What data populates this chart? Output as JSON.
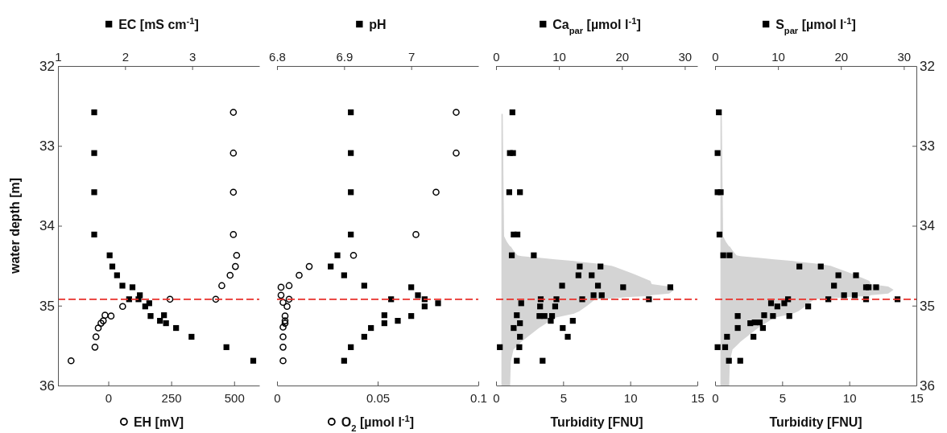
{
  "chart_data": [
    {
      "type": "scatter",
      "ylabel": "water depth [m]",
      "xlabel": "EH [mV]",
      "x2label": "EC [mS cm$^{-1}$]",
      "xlim": [
        -200,
        600
      ],
      "xticks": [
        0,
        250,
        500
      ],
      "x2lim": [
        1,
        4
      ],
      "x2ticks": [
        1,
        2,
        3
      ],
      "ylim": [
        36,
        32
      ],
      "yticks": [
        32,
        33,
        34,
        35,
        36
      ],
      "series": [
        {
          "type": "scatter",
          "axis": "x2",
          "marker": "square",
          "color": "#000000",
          "x": [
            1.54,
            1.54,
            1.54,
            1.54,
            1.77,
            1.81,
            1.88,
            1.96,
            2.11,
            2.06,
            2.2,
            2.22,
            2.3,
            2.36,
            2.38,
            2.52,
            2.58,
            2.61,
            2.76,
            2.99,
            3.51,
            3.91
          ],
          "values": [
            32.58,
            33.09,
            33.58,
            34.11,
            34.37,
            34.51,
            34.62,
            34.75,
            34.77,
            34.92,
            34.92,
            34.87,
            35.01,
            34.97,
            35.13,
            35.19,
            35.12,
            35.22,
            35.28,
            35.39,
            35.52,
            35.69
          ]
        },
        {
          "type": "scatter",
          "marker": "circle",
          "color": "#000000",
          "x": [
            497,
            497,
            497,
            497,
            510,
            505,
            484,
            451,
            427,
            245,
            57,
            11,
            -13,
            -20,
            -29,
            -40,
            -49,
            -53,
            -148
          ],
          "values": [
            32.58,
            33.09,
            33.58,
            34.11,
            34.37,
            34.51,
            34.62,
            34.75,
            34.92,
            34.92,
            35.01,
            35.13,
            35.12,
            35.19,
            35.22,
            35.28,
            35.39,
            35.52,
            35.69
          ]
        }
      ],
      "ref_lines": [
        {
          "axis": "y",
          "value": 34.92,
          "color": "#e8302a",
          "line_style": "dashed"
        }
      ]
    },
    {
      "type": "scatter",
      "xlabel": "O$_{2}$ [µmol l$^{-1}$]",
      "x2label": "pH",
      "xlim": [
        0,
        0.1
      ],
      "xticks": [
        0,
        0.05,
        0.1
      ],
      "x2lim": [
        6.8,
        7.1
      ],
      "x2ticks": [
        6.8,
        6.9,
        7
      ],
      "ylim": [
        36,
        32
      ],
      "tick_labels": "x",
      "series": [
        {
          "type": "scatter",
          "axis": "x2",
          "marker": "square",
          "color": "#000000",
          "x": [
            6.91,
            6.91,
            6.91,
            6.91,
            6.89,
            6.88,
            6.9,
            6.93,
            7.0,
            7.01,
            7.02,
            6.97,
            7.02,
            7.04,
            6.96,
            6.96,
            6.98,
            7.0,
            6.94,
            6.93,
            6.91,
            6.9
          ],
          "values": [
            32.58,
            33.09,
            33.58,
            34.11,
            34.37,
            34.51,
            34.62,
            34.75,
            34.77,
            34.87,
            34.92,
            34.92,
            35.01,
            34.97,
            35.12,
            35.22,
            35.19,
            35.13,
            35.28,
            35.39,
            35.52,
            35.69
          ]
        },
        {
          "type": "scatter",
          "marker": "circle",
          "color": "#000000",
          "x": [
            0.089,
            0.089,
            0.079,
            0.069,
            0.038,
            0.016,
            0.011,
            0.002,
            0.006,
            0.002,
            0.006,
            0.003,
            0.005,
            0.004,
            0.004,
            0.004,
            0.003,
            0.003,
            0.003,
            0.003
          ],
          "values": [
            32.58,
            33.09,
            33.58,
            34.11,
            34.37,
            34.51,
            34.62,
            34.77,
            34.75,
            34.87,
            34.92,
            34.96,
            35.01,
            35.13,
            35.19,
            35.22,
            35.27,
            35.39,
            35.52,
            35.69
          ]
        }
      ],
      "ref_lines": [
        {
          "axis": "y",
          "value": 34.92,
          "color": "#e8302a",
          "line_style": "dashed"
        }
      ]
    },
    {
      "type": "scatter",
      "xlabel": "Turbidity [FNU]",
      "x2label": "Ca$_{par}$ [µmol l$^{-1}$]",
      "xlim": [
        0,
        15
      ],
      "xticks": [
        0,
        5,
        10,
        15
      ],
      "x2lim": [
        0,
        32
      ],
      "x2ticks": [
        0,
        10,
        20,
        30
      ],
      "ylim": [
        36,
        32
      ],
      "tick_labels": "x",
      "series": [
        {
          "type": "line",
          "color": "#d4d4d4",
          "x": [
            0.4,
            0.5,
            0.6,
            0.8,
            1.05,
            1.1,
            1.3,
            1.6,
            1.9,
            3.2,
            4.4,
            5.8,
            6.2,
            6.8,
            7.4,
            8.6,
            10.2,
            11.5,
            11.6,
            12.9,
            13.3
          ],
          "values": [
            null,
            null,
            null,
            null,
            null,
            null,
            null,
            null,
            null,
            null,
            null,
            null,
            null,
            null,
            null,
            null,
            null,
            null,
            null,
            null,
            null
          ],
          "lower": [
            32.6,
            32.6,
            34.13,
            34.2,
            34.26,
            34.26,
            34.31,
            34.37,
            34.38,
            34.4,
            34.42,
            34.44,
            34.45,
            34.46,
            34.47,
            34.5,
            34.6,
            34.69,
            34.73,
            34.76,
            34.8
          ],
          "upper": [
            36,
            36,
            36,
            36,
            36,
            35.7,
            35.55,
            35.5,
            35.45,
            35.28,
            35.15,
            35.1,
            35.07,
            35.0,
            34.92,
            34.91,
            34.89,
            34.88,
            34.87,
            34.85,
            34.8
          ]
        },
        {
          "type": "scatter",
          "axis": "x2",
          "marker": "square",
          "color": "#000000",
          "x": [
            2.6,
            2.2,
            2.7,
            2.1,
            3.8,
            2.8,
            3.4,
            2.5,
            6.0,
            13.3,
            16.6,
            13.1,
            15.2,
            10.5,
            16.2,
            20.2,
            27.7,
            15.5,
            16.8,
            7.1,
            9.6,
            13.7,
            24.3,
            4.0,
            7.0,
            9.4,
            3.3,
            6.9,
            7.7,
            8.9,
            8.7,
            3.8,
            12.2,
            2.8,
            10.6,
            3.8,
            11.4,
            0.6,
            3.7,
            3.3,
            7.4
          ],
          "values": [
            32.58,
            33.09,
            33.09,
            33.58,
            33.58,
            34.11,
            34.11,
            34.37,
            34.37,
            34.51,
            34.51,
            34.62,
            34.62,
            34.75,
            34.75,
            34.77,
            34.77,
            34.87,
            34.87,
            34.92,
            34.92,
            34.92,
            34.92,
            34.97,
            35.01,
            35.01,
            35.12,
            35.13,
            35.13,
            35.13,
            35.19,
            35.22,
            35.19,
            35.28,
            35.28,
            35.39,
            35.39,
            35.52,
            35.52,
            35.69,
            35.69
          ]
        }
      ],
      "ref_lines": [
        {
          "axis": "y",
          "value": 34.92,
          "color": "#e8302a",
          "line_style": "dashed"
        }
      ]
    },
    {
      "type": "scatter",
      "xlabel": "Turbidity [FNU]",
      "x2label": "S$_{par}$ [µmol l$^{-1}$]",
      "xlim": [
        0,
        15
      ],
      "xticks": [
        0,
        5,
        10,
        15
      ],
      "x2lim": [
        0,
        32
      ],
      "x2ticks": [
        0,
        10,
        20,
        30
      ],
      "ylim": [
        36,
        32
      ],
      "yticks": [
        32,
        33,
        34,
        35,
        36
      ],
      "series": [
        {
          "type": "line",
          "color": "#d4d4d4",
          "x": [
            0.4,
            0.5,
            0.6,
            0.8,
            1.05,
            1.1,
            1.3,
            1.6,
            1.9,
            3.2,
            4.4,
            5.8,
            6.2,
            6.8,
            7.4,
            8.6,
            10.2,
            11.5,
            11.6,
            12.9,
            13.3
          ],
          "values": [
            null,
            null,
            null,
            null,
            null,
            null,
            null,
            null,
            null,
            null,
            null,
            null,
            null,
            null,
            null,
            null,
            null,
            null,
            null,
            null,
            null
          ],
          "lower": [
            32.6,
            32.6,
            34.13,
            34.2,
            34.26,
            34.26,
            34.31,
            34.37,
            34.38,
            34.4,
            34.42,
            34.44,
            34.45,
            34.46,
            34.47,
            34.5,
            34.6,
            34.69,
            34.73,
            34.76,
            34.8
          ],
          "upper": [
            36,
            36,
            36,
            36,
            36,
            35.7,
            35.55,
            35.5,
            35.45,
            35.28,
            35.15,
            35.1,
            35.07,
            35.0,
            34.92,
            34.91,
            34.89,
            34.88,
            34.87,
            34.85,
            34.8
          ]
        },
        {
          "type": "scatter",
          "axis": "x2",
          "marker": "square",
          "color": "#000000",
          "x": [
            0.6,
            0.4,
            0.4,
            0.9,
            0.7,
            1.3,
            2.3,
            13.4,
            16.8,
            19.6,
            22.4,
            18.9,
            24.0,
            24.4,
            25.6,
            20.5,
            22.2,
            18.0,
            24.0,
            29.0,
            11.6,
            11.0,
            8.9,
            9.9,
            14.8,
            9.2,
            11.8,
            3.6,
            7.8,
            7.1,
            6.3,
            5.6,
            7.6,
            3.6,
            6.1,
            1.9,
            0.4,
            1.6,
            2.2,
            4.0
          ],
          "values": [
            32.58,
            33.09,
            33.58,
            33.58,
            34.11,
            34.37,
            34.37,
            34.51,
            34.51,
            34.62,
            34.62,
            34.75,
            34.77,
            34.77,
            34.77,
            34.87,
            34.87,
            34.92,
            34.92,
            34.92,
            34.92,
            34.97,
            34.97,
            35.01,
            35.01,
            35.13,
            35.13,
            35.13,
            35.12,
            35.21,
            35.21,
            35.22,
            35.28,
            35.28,
            35.39,
            35.39,
            35.52,
            35.52,
            35.69,
            35.69
          ]
        }
      ],
      "ref_lines": [
        {
          "axis": "y",
          "value": 34.92,
          "color": "#e8302a",
          "line_style": "dashed"
        }
      ]
    }
  ]
}
